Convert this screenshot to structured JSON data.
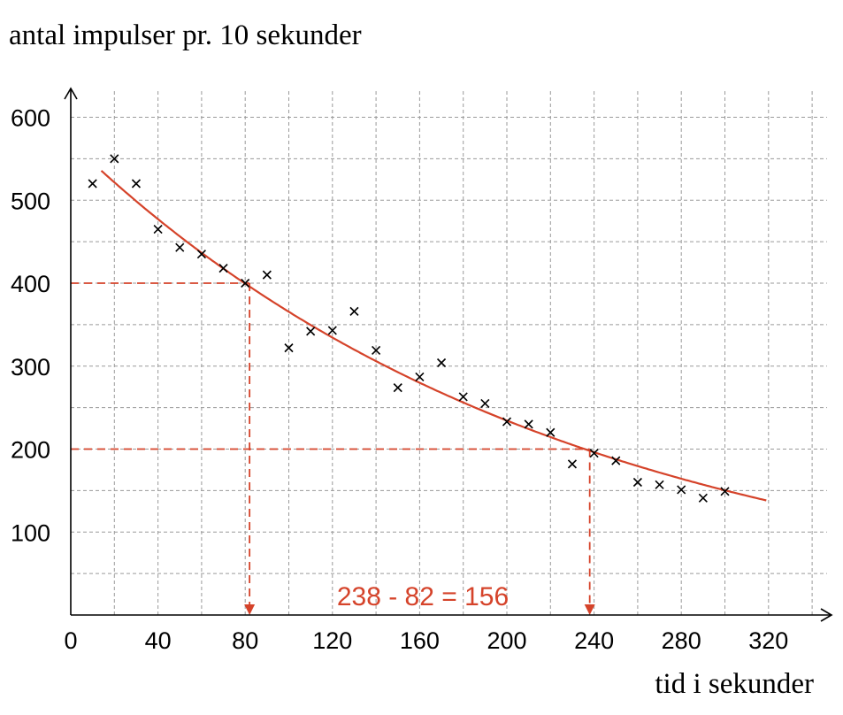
{
  "chart_data": {
    "type": "scatter",
    "title": "",
    "ylabel": "antal impulser pr. 10 sekunder",
    "xlabel": "tid i sekunder",
    "xlim": [
      0,
      350
    ],
    "ylim": [
      0,
      640
    ],
    "x_ticks": [
      0,
      40,
      80,
      120,
      160,
      200,
      240,
      280,
      320
    ],
    "y_ticks": [
      100,
      200,
      300,
      400,
      500,
      600
    ],
    "grid": true,
    "grid_x_step": 20,
    "grid_y_step": 50,
    "points": [
      {
        "x": 10,
        "y": 520
      },
      {
        "x": 20,
        "y": 550
      },
      {
        "x": 30,
        "y": 520
      },
      {
        "x": 40,
        "y": 465
      },
      {
        "x": 50,
        "y": 443
      },
      {
        "x": 60,
        "y": 435
      },
      {
        "x": 70,
        "y": 418
      },
      {
        "x": 80,
        "y": 400
      },
      {
        "x": 90,
        "y": 410
      },
      {
        "x": 100,
        "y": 322
      },
      {
        "x": 110,
        "y": 342
      },
      {
        "x": 120,
        "y": 343
      },
      {
        "x": 130,
        "y": 366
      },
      {
        "x": 140,
        "y": 319
      },
      {
        "x": 150,
        "y": 274
      },
      {
        "x": 160,
        "y": 287
      },
      {
        "x": 170,
        "y": 304
      },
      {
        "x": 180,
        "y": 263
      },
      {
        "x": 190,
        "y": 255
      },
      {
        "x": 200,
        "y": 233
      },
      {
        "x": 210,
        "y": 230
      },
      {
        "x": 220,
        "y": 220
      },
      {
        "x": 230,
        "y": 182
      },
      {
        "x": 240,
        "y": 195
      },
      {
        "x": 250,
        "y": 186
      },
      {
        "x": 260,
        "y": 160
      },
      {
        "x": 270,
        "y": 157
      },
      {
        "x": 280,
        "y": 151
      },
      {
        "x": 290,
        "y": 141
      },
      {
        "x": 300,
        "y": 149
      }
    ],
    "fit_curve": {
      "type": "exponential",
      "formula": "y = a * 2^(-x/156)",
      "a": 570,
      "half_life": 156,
      "x_range": [
        14,
        319
      ]
    },
    "reference_lines": [
      {
        "y": 400,
        "x": 82
      },
      {
        "y": 200,
        "x": 238
      }
    ],
    "annotation": "238 - 82 = 156",
    "accent_color": "#d5432a"
  }
}
